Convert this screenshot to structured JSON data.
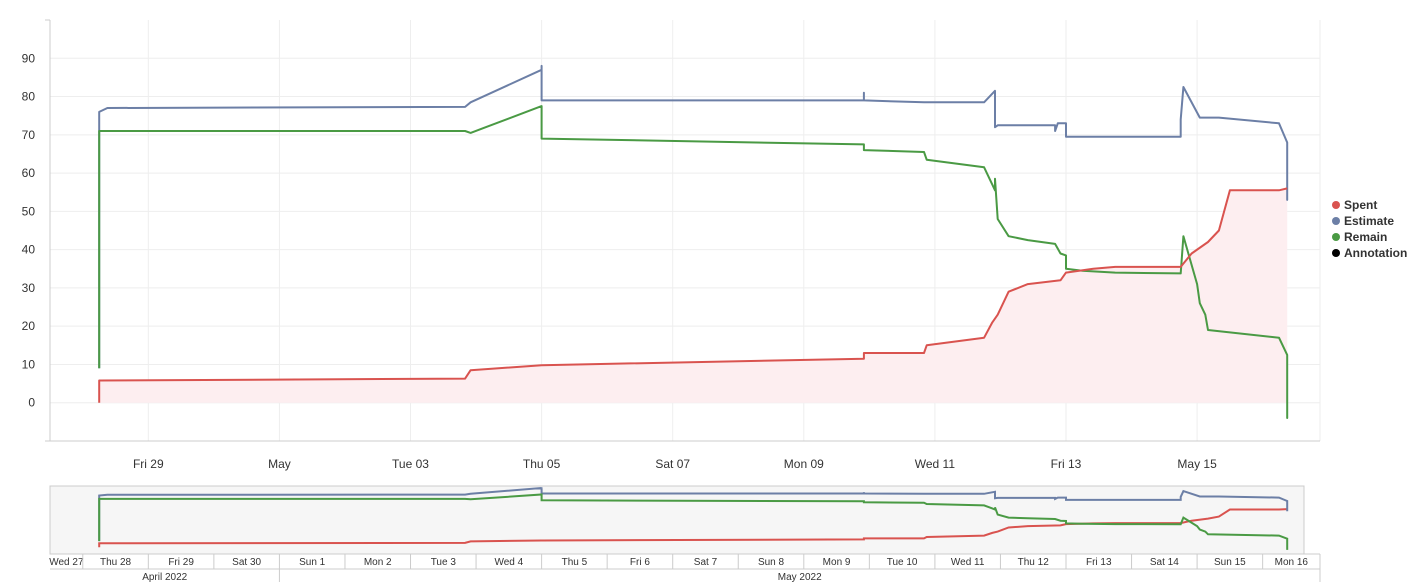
{
  "chart_data": {
    "type": "line",
    "title": "",
    "xlabel": "",
    "ylabel": "",
    "ylim": [
      -10,
      100
    ],
    "yticks": [
      0,
      10,
      20,
      30,
      40,
      50,
      60,
      70,
      80,
      90
    ],
    "xlim": [
      "2022-04-27T12:00",
      "2022-05-16T21:00"
    ],
    "xticks": [
      {
        "date": "2022-04-29",
        "label": "Fri 29"
      },
      {
        "date": "2022-05-01",
        "label": "May"
      },
      {
        "date": "2022-05-03",
        "label": "Tue 03"
      },
      {
        "date": "2022-05-05",
        "label": "Thu 05"
      },
      {
        "date": "2022-05-07",
        "label": "Sat 07"
      },
      {
        "date": "2022-05-09",
        "label": "Mon 09"
      },
      {
        "date": "2022-05-11",
        "label": "Wed 11"
      },
      {
        "date": "2022-05-13",
        "label": "Fri 13"
      },
      {
        "date": "2022-05-15",
        "label": "May 15"
      }
    ],
    "grid": true,
    "legend_position": "right",
    "series": [
      {
        "name": "Spent",
        "color": "#d9534f",
        "fill": "#fdeef0",
        "points": [
          [
            "2022-04-28T06:00",
            0
          ],
          [
            "2022-04-28T06:00",
            5.8
          ],
          [
            "2022-05-03T20:00",
            6.3
          ],
          [
            "2022-05-03T22:00",
            8.5
          ],
          [
            "2022-05-05T00:00",
            9.8
          ],
          [
            "2022-05-09T22:00",
            11.5
          ],
          [
            "2022-05-09T22:00",
            13.0
          ],
          [
            "2022-05-10T20:00",
            13.0
          ],
          [
            "2022-05-10T21:00",
            15.0
          ],
          [
            "2022-05-11T18:00",
            17.0
          ],
          [
            "2022-05-11T21:00",
            21.0
          ],
          [
            "2022-05-11T23:00",
            23.0
          ],
          [
            "2022-05-12T03:00",
            29.0
          ],
          [
            "2022-05-12T10:00",
            31.0
          ],
          [
            "2022-05-12T22:00",
            32.0
          ],
          [
            "2022-05-13T00:00",
            34.0
          ],
          [
            "2022-05-13T10:00",
            35.0
          ],
          [
            "2022-05-13T18:00",
            35.5
          ],
          [
            "2022-05-14T18:00",
            35.5
          ],
          [
            "2022-05-14T22:00",
            39.0
          ],
          [
            "2022-05-15T04:00",
            42.0
          ],
          [
            "2022-05-15T08:00",
            45.0
          ],
          [
            "2022-05-15T12:00",
            55.5
          ],
          [
            "2022-05-16T06:00",
            55.5
          ],
          [
            "2022-05-16T09:00",
            56.0
          ]
        ]
      },
      {
        "name": "Estimate",
        "color": "#6c7fa6",
        "points": [
          [
            "2022-04-28T06:00",
            9
          ],
          [
            "2022-04-28T06:00",
            76
          ],
          [
            "2022-04-28T09:00",
            77
          ],
          [
            "2022-05-03T20:00",
            77.3
          ],
          [
            "2022-05-03T22:00",
            78.5
          ],
          [
            "2022-05-05T00:00",
            87
          ],
          [
            "2022-05-05T00:00",
            88
          ],
          [
            "2022-05-05T00:00",
            79
          ],
          [
            "2022-05-09T22:00",
            79
          ],
          [
            "2022-05-09T22:00",
            81
          ],
          [
            "2022-05-09T22:00",
            79
          ],
          [
            "2022-05-10T20:00",
            78.5
          ],
          [
            "2022-05-11T18:00",
            78.5
          ],
          [
            "2022-05-11T22:00",
            81.5
          ],
          [
            "2022-05-11T22:00",
            72.0
          ],
          [
            "2022-05-11T23:00",
            72.5
          ],
          [
            "2022-05-12T20:00",
            72.5
          ],
          [
            "2022-05-12T20:00",
            71.0
          ],
          [
            "2022-05-12T21:00",
            73.0
          ],
          [
            "2022-05-13T00:00",
            73.0
          ],
          [
            "2022-05-13T00:00",
            69.5
          ],
          [
            "2022-05-14T18:00",
            69.5
          ],
          [
            "2022-05-14T18:00",
            74.0
          ],
          [
            "2022-05-14T19:00",
            82.5
          ],
          [
            "2022-05-15T01:00",
            74.5
          ],
          [
            "2022-05-15T08:00",
            74.5
          ],
          [
            "2022-05-16T06:00",
            73.0
          ],
          [
            "2022-05-16T09:00",
            68.0
          ],
          [
            "2022-05-16T09:00",
            53.0
          ],
          [
            "2022-05-16T09:00",
            63.5
          ]
        ]
      },
      {
        "name": "Remain",
        "color": "#4a9a44",
        "points": [
          [
            "2022-04-28T06:00",
            9
          ],
          [
            "2022-04-28T06:00",
            71
          ],
          [
            "2022-05-03T20:00",
            71
          ],
          [
            "2022-05-03T22:00",
            70.5
          ],
          [
            "2022-05-05T00:00",
            77.5
          ],
          [
            "2022-05-05T00:00",
            69
          ],
          [
            "2022-05-09T22:00",
            67.5
          ],
          [
            "2022-05-09T22:00",
            66.0
          ],
          [
            "2022-05-10T20:00",
            65.5
          ],
          [
            "2022-05-10T21:00",
            63.5
          ],
          [
            "2022-05-11T18:00",
            61.5
          ],
          [
            "2022-05-11T21:00",
            57.0
          ],
          [
            "2022-05-11T22:00",
            55.5
          ],
          [
            "2022-05-11T22:00",
            58.5
          ],
          [
            "2022-05-11T23:00",
            48.0
          ],
          [
            "2022-05-12T03:00",
            43.5
          ],
          [
            "2022-05-12T10:00",
            42.5
          ],
          [
            "2022-05-12T20:00",
            41.5
          ],
          [
            "2022-05-12T22:00",
            39.0
          ],
          [
            "2022-05-13T00:00",
            38.5
          ],
          [
            "2022-05-13T00:00",
            35.0
          ],
          [
            "2022-05-13T06:00",
            34.5
          ],
          [
            "2022-05-13T18:00",
            34.0
          ],
          [
            "2022-05-14T18:00",
            33.8
          ],
          [
            "2022-05-14T19:00",
            43.5
          ],
          [
            "2022-05-15T00:00",
            31.0
          ],
          [
            "2022-05-15T01:00",
            26.0
          ],
          [
            "2022-05-15T03:00",
            23.0
          ],
          [
            "2022-05-15T04:00",
            19.0
          ],
          [
            "2022-05-16T06:00",
            17.0
          ],
          [
            "2022-05-16T09:00",
            12.5
          ],
          [
            "2022-05-16T09:00",
            -4.0
          ],
          [
            "2022-05-16T09:00",
            0.0
          ]
        ]
      },
      {
        "name": "Annotation",
        "color": "#000000",
        "points": []
      }
    ]
  },
  "navigator": {
    "days": [
      "Wed 27",
      "Thu 28",
      "Fri 29",
      "Sat 30",
      "Sun 1",
      "Mon 2",
      "Tue 3",
      "Wed 4",
      "Thu 5",
      "Fri 6",
      "Sat 7",
      "Sun 8",
      "Mon 9",
      "Tue 10",
      "Wed 11",
      "Thu 12",
      "Fri 13",
      "Sat 14",
      "Sun 15",
      "Mon 16"
    ],
    "months": [
      "April 2022",
      "May 2022"
    ]
  }
}
